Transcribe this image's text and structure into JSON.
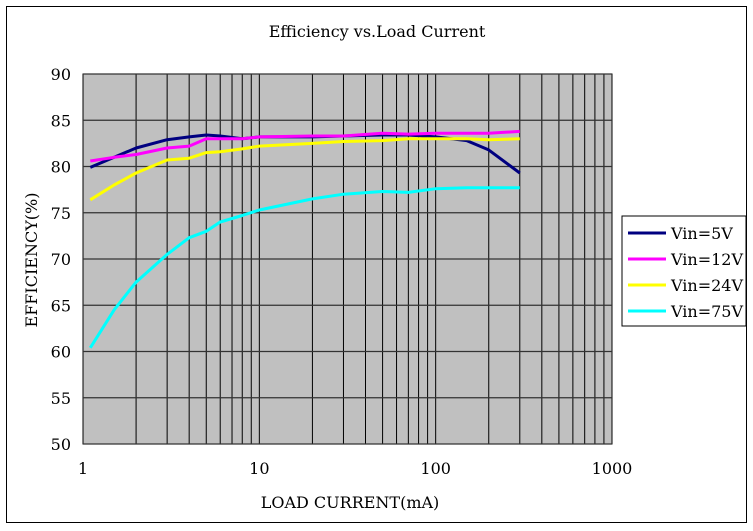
{
  "chart_data": {
    "type": "line",
    "title": "Efficiency vs.Load Current",
    "xlabel": "LOAD CURRENT(mA)",
    "ylabel": "EFFICIENCY(%)",
    "xscale": "log",
    "xlim": [
      1,
      1000
    ],
    "ylim": [
      50,
      90
    ],
    "xticks": [
      "1",
      "10",
      "100",
      "1000"
    ],
    "yticks": [
      "50",
      "55",
      "60",
      "65",
      "70",
      "75",
      "80",
      "85",
      "90"
    ],
    "grid": true,
    "legend": "right",
    "background": "#c0c0c0",
    "x": [
      1.1,
      1.5,
      2,
      3,
      4,
      5,
      6,
      8,
      10,
      20,
      30,
      50,
      70,
      100,
      150,
      200,
      300
    ],
    "series": [
      {
        "name": "Vin=5V",
        "color": "#000080",
        "values": [
          79.9,
          81,
          82,
          82.9,
          83.2,
          83.4,
          83.3,
          83.0,
          83.2,
          83.2,
          83.3,
          83.4,
          83.4,
          83.2,
          82.8,
          81.8,
          79.3
        ]
      },
      {
        "name": "Vin=12V",
        "color": "#ff00ff",
        "values": [
          80.6,
          81.0,
          81.3,
          82.0,
          82.2,
          83.0,
          83.0,
          83.0,
          83.2,
          83.3,
          83.3,
          83.6,
          83.5,
          83.6,
          83.6,
          83.6,
          83.8
        ]
      },
      {
        "name": "Vin=24V",
        "color": "#ffff00",
        "values": [
          76.4,
          78,
          79.3,
          80.7,
          80.9,
          81.5,
          81.6,
          81.9,
          82.2,
          82.5,
          82.7,
          82.8,
          83.0,
          83.0,
          83.0,
          82.9,
          83.0
        ]
      },
      {
        "name": "Vin=75V",
        "color": "#00ffff",
        "values": [
          60.4,
          64.5,
          67.5,
          70.5,
          72.3,
          73.0,
          74.0,
          74.7,
          75.3,
          76.5,
          77.0,
          77.3,
          77.2,
          77.6,
          77.7,
          77.7,
          77.7
        ]
      }
    ]
  }
}
